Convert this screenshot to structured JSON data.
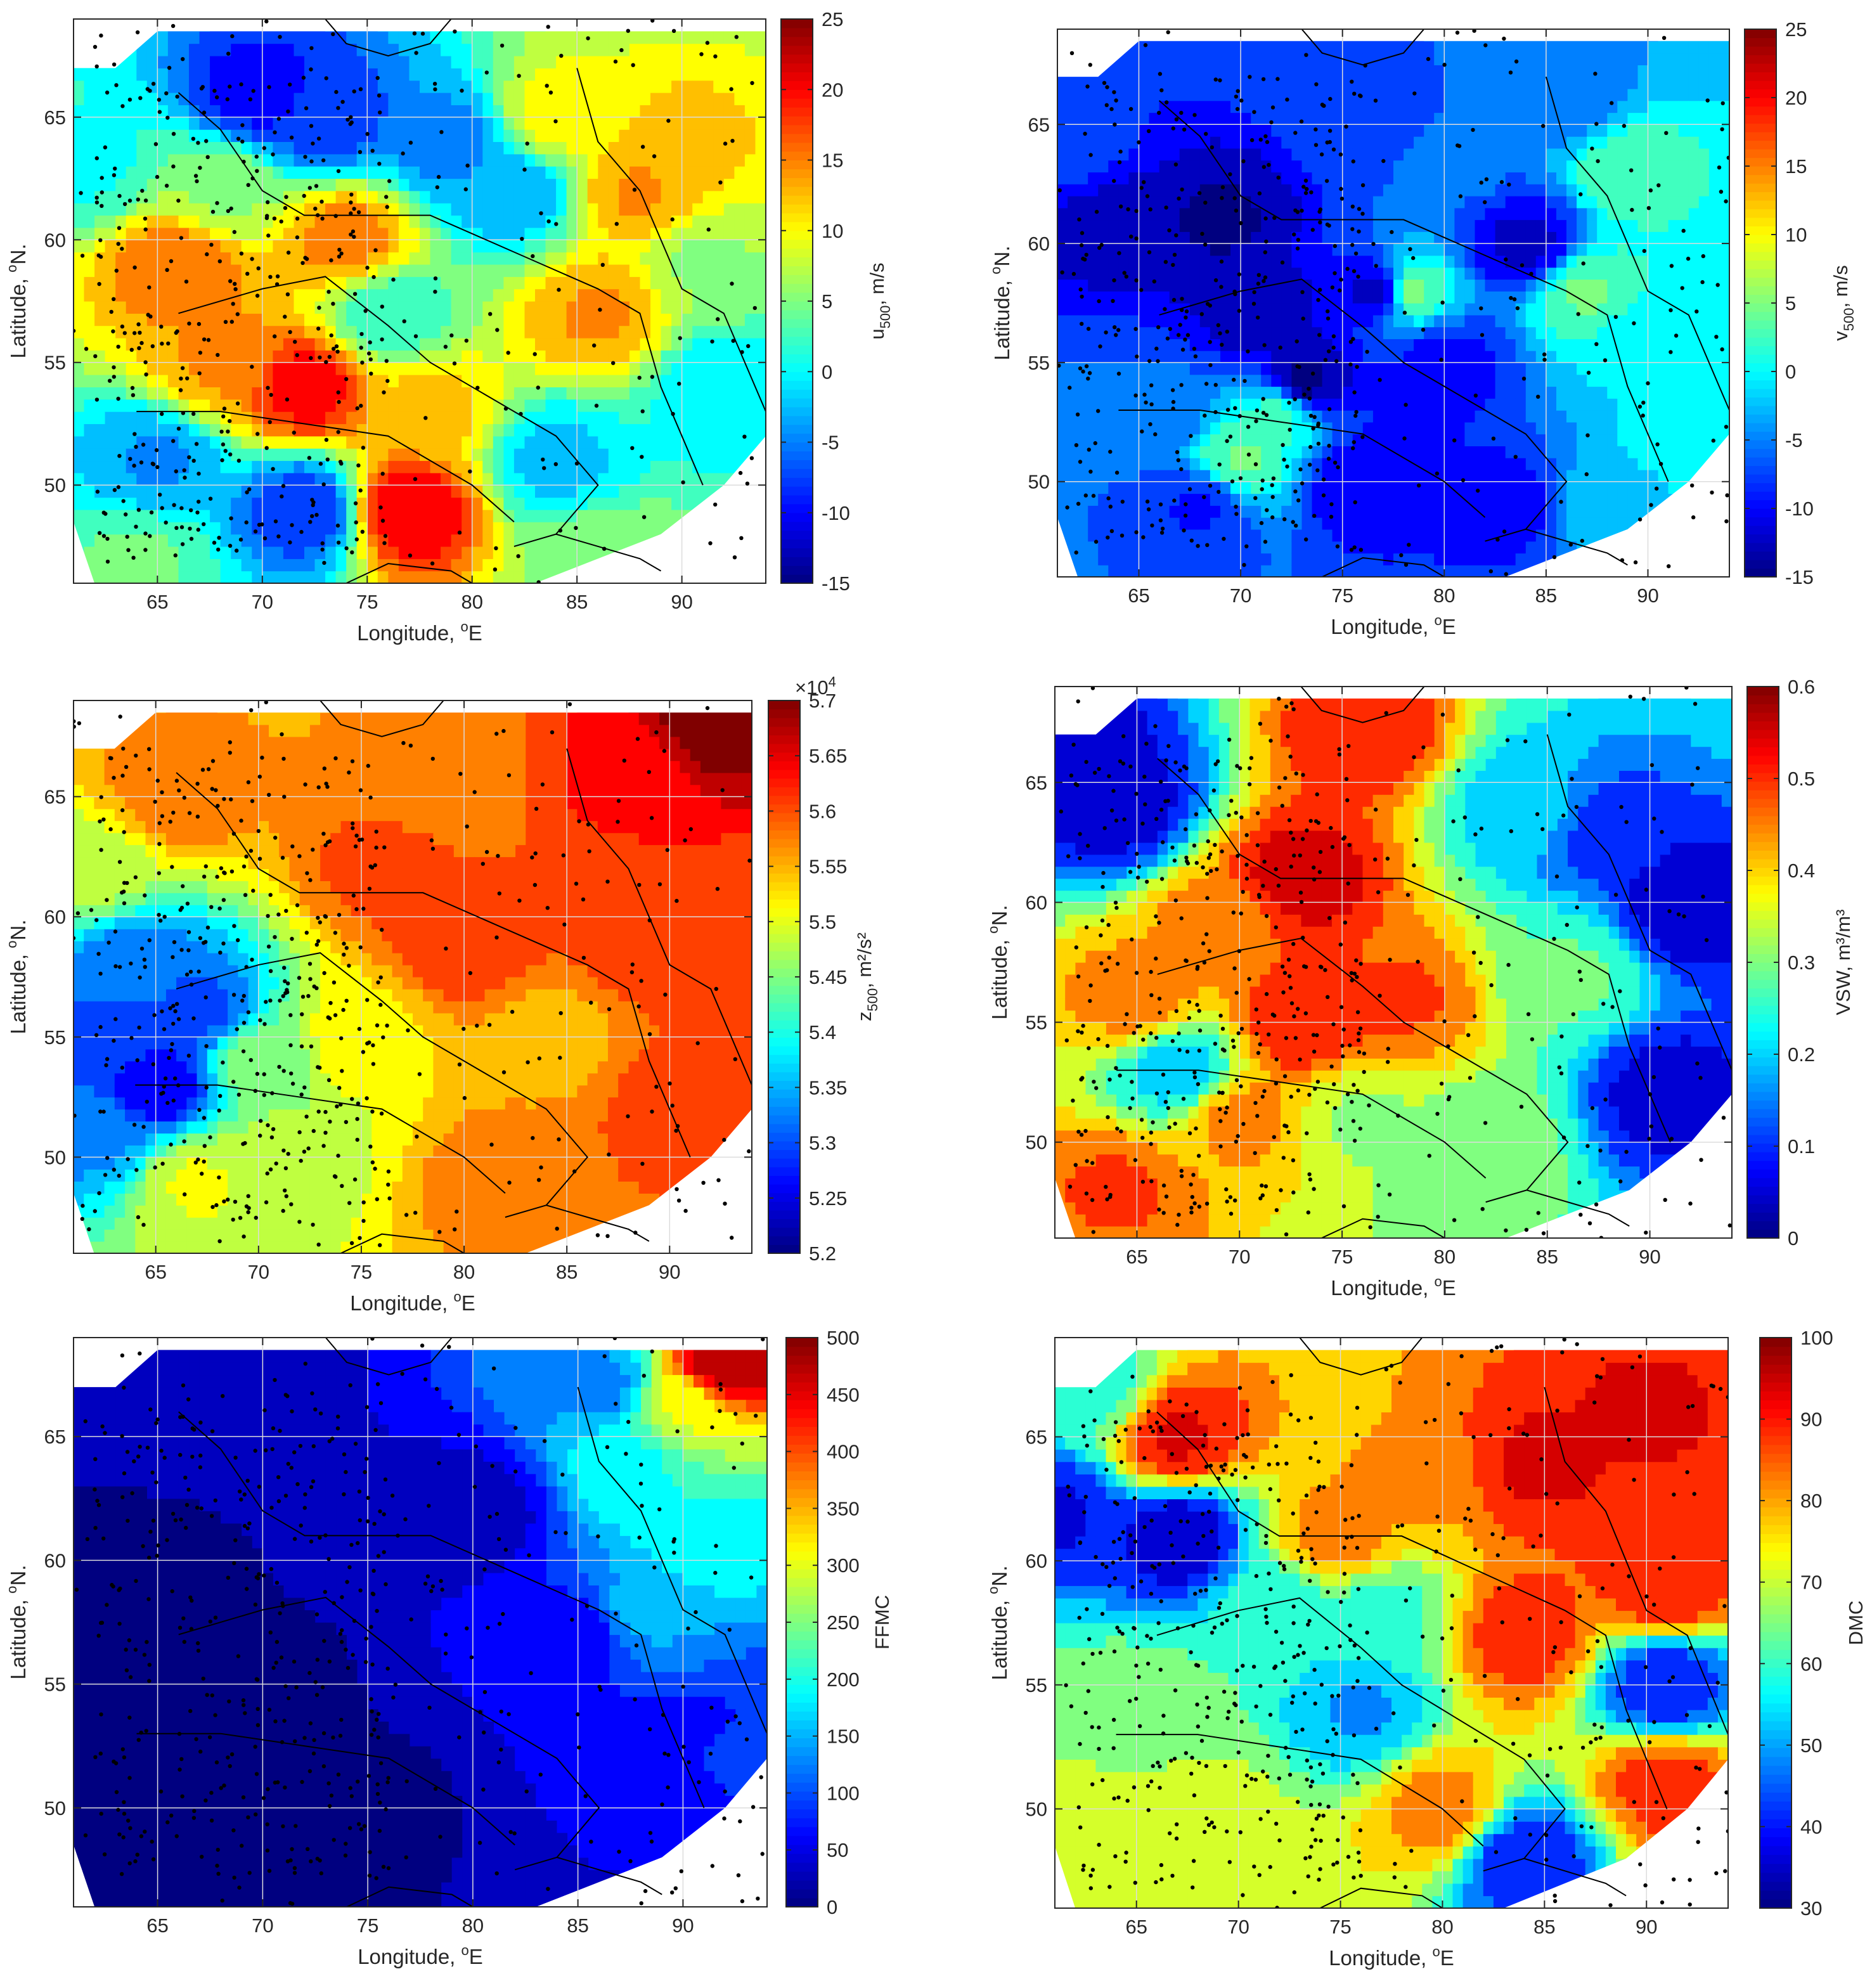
{
  "chart_data": [
    {
      "type": "heatmap",
      "panel": "top-left",
      "xlabel_text": "Longitude, ",
      "xlabel_sup": "o",
      "xlabel_unit": "E",
      "ylabel_text": "Latitude, ",
      "ylabel_sup": "o",
      "ylabel_unit": "N.",
      "xlim": [
        61,
        94
      ],
      "ylim": [
        46,
        69
      ],
      "xticks": [
        65,
        70,
        75,
        80,
        85,
        90
      ],
      "yticks": [
        50,
        55,
        60,
        65
      ],
      "colorbar": {
        "label_main": "u",
        "label_sub": "500",
        "label_rest": ", m/s",
        "ticks": [
          -15,
          -10,
          -5,
          0,
          5,
          10,
          15,
          20,
          25
        ],
        "range": [
          -15,
          25
        ],
        "multiplier": ""
      },
      "field_range": [
        -15,
        25
      ],
      "centers": [
        [
          [
            66,
            59
          ],
          16
        ],
        [
          [
            68,
            55
          ],
          14
        ],
        [
          [
            72,
            54
          ],
          20
        ],
        [
          [
            74,
            60
          ],
          15
        ],
        [
          [
            77,
            49
          ],
          21
        ],
        [
          [
            78,
            53
          ],
          12
        ],
        [
          [
            88,
            62
          ],
          14
        ],
        [
          [
            86,
            57
          ],
          14
        ],
        [
          [
            90,
            64
          ],
          12
        ],
        [
          [
            84,
            65
          ],
          10
        ],
        [
          [
            70,
            66
          ],
          -10
        ],
        [
          [
            73,
            65
          ],
          -8
        ],
        [
          [
            79,
            64
          ],
          -5
        ],
        [
          [
            82,
            62
          ],
          -3
        ],
        [
          [
            72,
            49
          ],
          -8
        ],
        [
          [
            65,
            51
          ],
          -4
        ],
        [
          [
            84,
            51
          ],
          -2
        ],
        [
          [
            92,
            54
          ],
          -1
        ],
        [
          [
            62,
            63
          ],
          1
        ],
        [
          [
            64,
            47
          ],
          4
        ],
        [
          [
            86,
            47
          ],
          6
        ],
        [
          [
            76,
            57
          ],
          2
        ],
        [
          [
            68,
            62
          ],
          6
        ],
        [
          [
            91,
            59
          ],
          6
        ]
      ],
      "base_value": 3
    },
    {
      "type": "heatmap",
      "panel": "top-right",
      "xlabel_text": "Longitude, ",
      "xlabel_sup": "o",
      "xlabel_unit": "E",
      "ylabel_text": "Latitude, ",
      "ylabel_sup": "o",
      "ylabel_unit": "N.",
      "xlim": [
        61,
        94
      ],
      "ylim": [
        46,
        69
      ],
      "xticks": [
        65,
        70,
        75,
        80,
        85,
        90
      ],
      "yticks": [
        50,
        55,
        60,
        65
      ],
      "colorbar": {
        "label_main": "v",
        "label_sub": "500",
        "label_rest": ", m/s",
        "ticks": [
          -15,
          -10,
          -5,
          0,
          5,
          10,
          15,
          20,
          25
        ],
        "range": [
          -15,
          25
        ],
        "multiplier": ""
      },
      "field_range": [
        -15,
        25
      ],
      "centers": [
        [
          [
            64,
            61
          ],
          -13
        ],
        [
          [
            69,
            61
          ],
          -14
        ],
        [
          [
            73,
            54
          ],
          -15
        ],
        [
          [
            77,
            58
          ],
          -15
        ],
        [
          [
            71,
            57
          ],
          -13
        ],
        [
          [
            80,
            55
          ],
          -10
        ],
        [
          [
            84,
            60
          ],
          -12
        ],
        [
          [
            68,
            49
          ],
          -9
        ],
        [
          [
            76,
            50
          ],
          -11
        ],
        [
          [
            83,
            49
          ],
          -10
        ],
        [
          [
            66,
            53
          ],
          -6
        ],
        [
          [
            78,
            58
          ],
          7
        ],
        [
          [
            87,
            58
          ],
          4
        ],
        [
          [
            89,
            63
          ],
          3
        ],
        [
          [
            72,
            53
          ],
          3
        ],
        [
          [
            92,
            52
          ],
          0
        ],
        [
          [
            88,
            49
          ],
          -2
        ],
        [
          [
            90,
            56
          ],
          -1
        ],
        [
          [
            76,
            66
          ],
          -7
        ],
        [
          [
            86,
            66
          ],
          -5
        ],
        [
          [
            70,
            51
          ],
          4
        ],
        [
          [
            62,
            64
          ],
          -8
        ],
        [
          [
            81,
            63
          ],
          -6
        ]
      ],
      "base_value": -4
    },
    {
      "type": "heatmap",
      "panel": "middle-left",
      "xlabel_text": "Longitude, ",
      "xlabel_sup": "o",
      "xlabel_unit": "E",
      "ylabel_text": "Latitude, ",
      "ylabel_sup": "o",
      "ylabel_unit": "N.",
      "xlim": [
        61,
        94
      ],
      "ylim": [
        46,
        69
      ],
      "xticks": [
        65,
        70,
        75,
        80,
        85,
        90
      ],
      "yticks": [
        50,
        55,
        60,
        65
      ],
      "colorbar": {
        "label_main": "z",
        "label_sub": "500",
        "label_rest": ", m²/s²",
        "ticks": [
          5.2,
          5.25,
          5.3,
          5.35,
          5.4,
          5.45,
          5.5,
          5.55,
          5.6,
          5.65,
          5.7
        ],
        "range": [
          5.2,
          5.7
        ],
        "multiplier": "×10",
        "multiplier_exp": "4"
      },
      "field_range": [
        5.2,
        5.7
      ],
      "centers": [
        [
          [
            63,
            55
          ],
          5.3
        ],
        [
          [
            65,
            53
          ],
          5.25
        ],
        [
          [
            67,
            56
          ],
          5.3
        ],
        [
          [
            64,
            58
          ],
          5.32
        ],
        [
          [
            62,
            51
          ],
          5.33
        ],
        [
          [
            67,
            49
          ],
          5.5
        ],
        [
          [
            71,
            50
          ],
          5.48
        ],
        [
          [
            76,
            62
          ],
          5.6
        ],
        [
          [
            80,
            59
          ],
          5.62
        ],
        [
          [
            89,
            59
          ],
          5.61
        ],
        [
          [
            91,
            52
          ],
          5.62
        ],
        [
          [
            92,
            68
          ],
          5.7
        ],
        [
          [
            88,
            66
          ],
          5.63
        ],
        [
          [
            66,
            65
          ],
          5.58
        ],
        [
          [
            79,
            66
          ],
          5.57
        ],
        [
          [
            84,
            55
          ],
          5.55
        ],
        [
          [
            75,
            55
          ],
          5.52
        ],
        [
          [
            70,
            54
          ],
          5.45
        ],
        [
          [
            82,
            49
          ],
          5.58
        ],
        [
          [
            62,
            62
          ],
          5.48
        ]
      ],
      "base_value": 5.54
    },
    {
      "type": "heatmap",
      "panel": "middle-right",
      "xlabel_text": "Longitude, ",
      "xlabel_sup": "o",
      "xlabel_unit": "E",
      "ylabel_text": "Latitude, ",
      "ylabel_sup": "o",
      "ylabel_unit": "N.",
      "xlim": [
        61,
        94
      ],
      "ylim": [
        46,
        69
      ],
      "xticks": [
        65,
        70,
        75,
        80,
        85,
        90
      ],
      "yticks": [
        50,
        55,
        60,
        65
      ],
      "colorbar": {
        "label_main": "VSW, m",
        "label_sub": "",
        "label_rest": "³/m³",
        "ticks": [
          0,
          0.1,
          0.2,
          0.3,
          0.4,
          0.5,
          0.6
        ],
        "range": [
          0,
          0.6
        ],
        "multiplier": ""
      },
      "field_range": [
        0,
        0.6
      ],
      "centers": [
        [
          [
            73,
            61
          ],
          0.55
        ],
        [
          [
            73,
            55
          ],
          0.52
        ],
        [
          [
            76,
            67
          ],
          0.52
        ],
        [
          [
            78,
            56
          ],
          0.48
        ],
        [
          [
            64,
            48
          ],
          0.48
        ],
        [
          [
            65,
            56
          ],
          0.45
        ],
        [
          [
            69,
            59
          ],
          0.45
        ],
        [
          [
            70,
            51
          ],
          0.44
        ],
        [
          [
            64,
            64
          ],
          0.05
        ],
        [
          [
            62,
            66
          ],
          0.03
        ],
        [
          [
            92,
            60
          ],
          0.03
        ],
        [
          [
            91,
            52
          ],
          0.05
        ],
        [
          [
            88,
            63
          ],
          0.1
        ],
        [
          [
            86,
            57
          ],
          0.28
        ],
        [
          [
            82,
            50
          ],
          0.3
        ],
        [
          [
            76,
            51
          ],
          0.32
        ],
        [
          [
            67,
            53
          ],
          0.2
        ],
        [
          [
            84,
            64
          ],
          0.2
        ]
      ],
      "base_value": 0.28
    },
    {
      "type": "heatmap",
      "panel": "bottom-left",
      "xlabel_text": "Longitude, ",
      "xlabel_sup": "o",
      "xlabel_unit": "E",
      "ylabel_text": "Latitude, ",
      "ylabel_sup": "o",
      "ylabel_unit": "N.",
      "xlim": [
        61,
        94
      ],
      "ylim": [
        46,
        69
      ],
      "xticks": [
        65,
        70,
        75,
        80,
        85,
        90
      ],
      "yticks": [
        50,
        55,
        60,
        65
      ],
      "colorbar": {
        "label_main": "FFMC",
        "label_sub": "",
        "label_rest": "",
        "ticks": [
          0,
          50,
          100,
          150,
          200,
          250,
          300,
          350,
          400,
          450,
          500
        ],
        "range": [
          0,
          500
        ],
        "multiplier": ""
      },
      "field_range": [
        0,
        500
      ],
      "centers": [
        [
          [
            70,
            55
          ],
          10
        ],
        [
          [
            65,
            60
          ],
          10
        ],
        [
          [
            75,
            50
          ],
          10
        ],
        [
          [
            80,
            62
          ],
          30
        ],
        [
          [
            85,
            57
          ],
          60
        ],
        [
          [
            88,
            58
          ],
          150
        ],
        [
          [
            91,
            61
          ],
          200
        ],
        [
          [
            92,
            68
          ],
          480
        ],
        [
          [
            90,
            66
          ],
          300
        ],
        [
          [
            88,
            64
          ],
          200
        ],
        [
          [
            86,
            67
          ],
          130
        ],
        [
          [
            92,
            52
          ],
          80
        ],
        [
          [
            89,
            52
          ],
          60
        ],
        [
          [
            68,
            66
          ],
          40
        ]
      ],
      "base_value": 10
    },
    {
      "type": "heatmap",
      "panel": "bottom-right",
      "xlabel_text": "Longitude, ",
      "xlabel_sup": "o",
      "xlabel_unit": "E",
      "ylabel_text": "Latitude, ",
      "ylabel_sup": "o",
      "ylabel_unit": "N.",
      "xlim": [
        61,
        94
      ],
      "ylim": [
        46,
        69
      ],
      "xticks": [
        65,
        70,
        75,
        80,
        85,
        90
      ],
      "yticks": [
        50,
        55,
        60,
        65
      ],
      "colorbar": {
        "label_main": "DMC",
        "label_sub": "",
        "label_rest": "",
        "ticks": [
          30,
          40,
          50,
          60,
          70,
          80,
          90,
          100
        ],
        "range": [
          30,
          100
        ],
        "multiplier": ""
      },
      "field_range": [
        30,
        100
      ],
      "centers": [
        [
          [
            67,
            65
          ],
          92
        ],
        [
          [
            90,
            66
          ],
          92
        ],
        [
          [
            91,
            59
          ],
          90
        ],
        [
          [
            91,
            51
          ],
          88
        ],
        [
          [
            85,
            64
          ],
          92
        ],
        [
          [
            84,
            57
          ],
          88
        ],
        [
          [
            67,
            61
          ],
          35
        ],
        [
          [
            61,
            62
          ],
          38
        ],
        [
          [
            72,
            58
          ],
          58
        ],
        [
          [
            77,
            58
          ],
          60
        ],
        [
          [
            76,
            54
          ],
          50
        ],
        [
          [
            91,
            55
          ],
          40
        ],
        [
          [
            84,
            48
          ],
          40
        ],
        [
          [
            65,
            54
          ],
          65
        ],
        [
          [
            69,
            49
          ],
          70
        ],
        [
          [
            65,
            49
          ],
          72
        ],
        [
          [
            78,
            63
          ],
          80
        ],
        [
          [
            75,
            61
          ],
          82
        ],
        [
          [
            80,
            50
          ],
          82
        ],
        [
          [
            63,
            67
          ],
          60
        ]
      ],
      "base_value": 78
    }
  ]
}
